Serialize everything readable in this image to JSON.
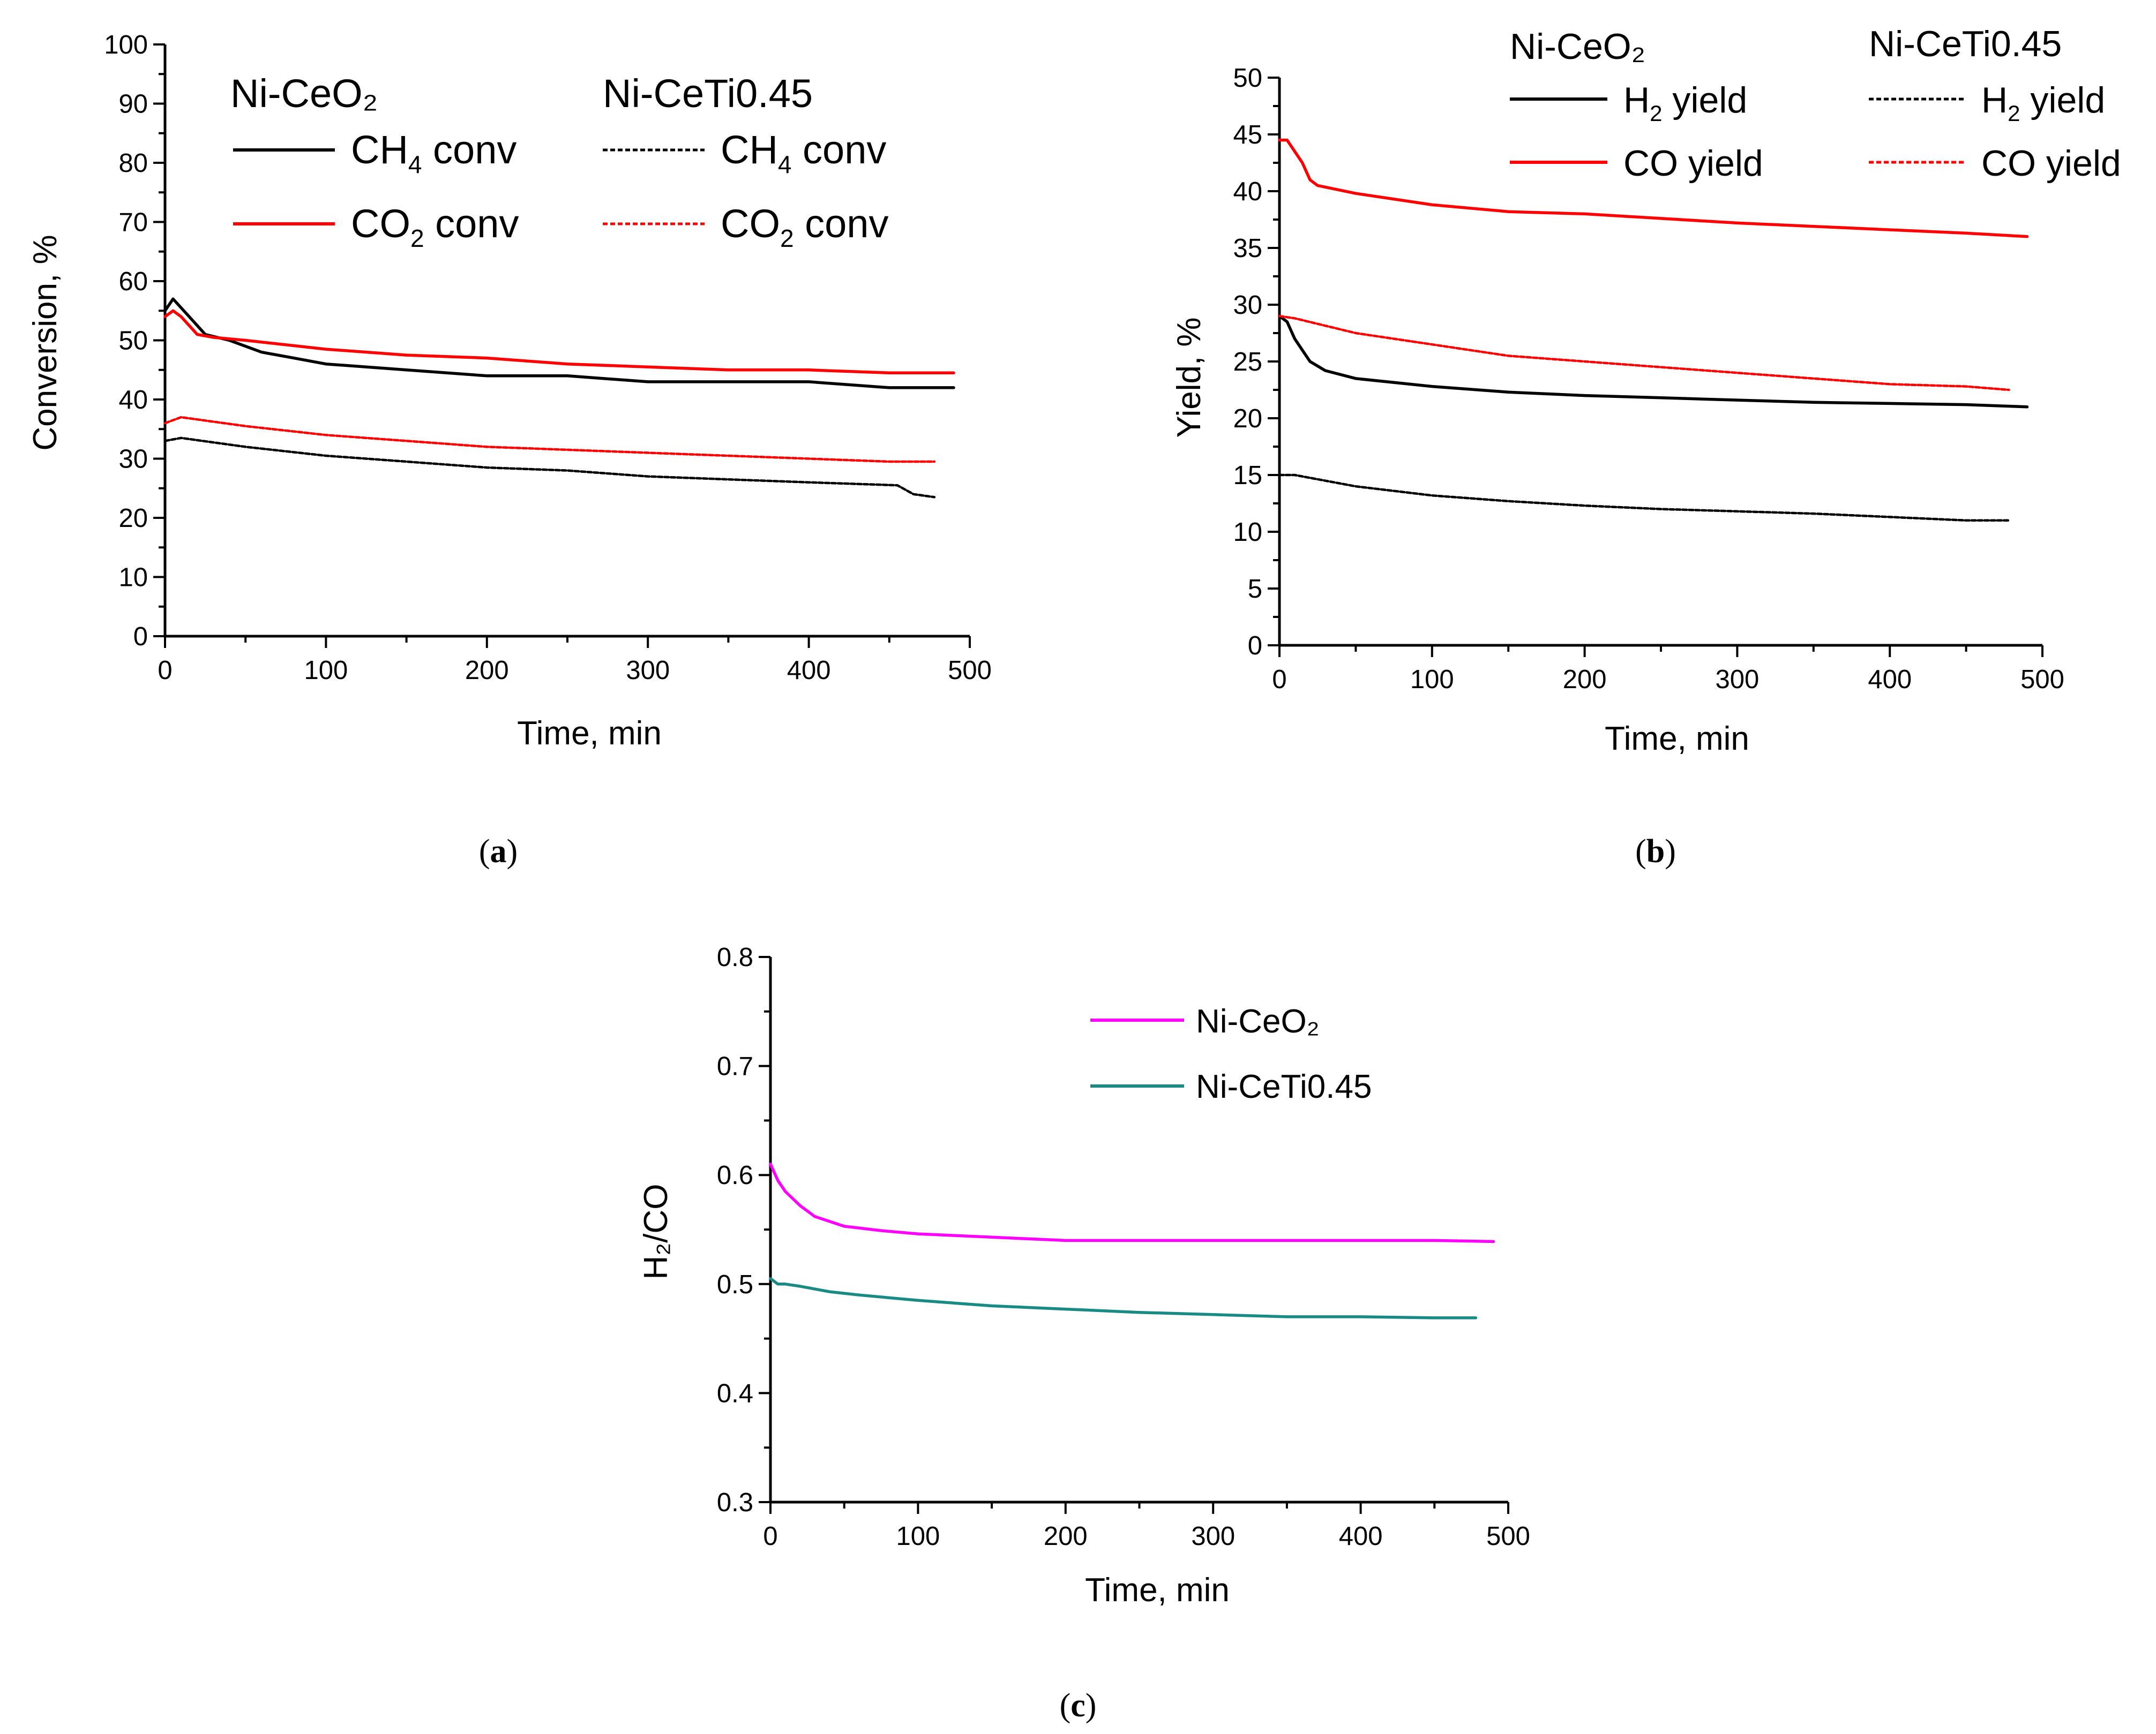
{
  "chart_data": [
    {
      "panel": "a",
      "type": "line",
      "caption": "a",
      "xlabel": "Time, min",
      "ylabel": "Conversion, %",
      "xlim": [
        0,
        500
      ],
      "ylim": [
        0,
        100
      ],
      "xticks": [
        0,
        100,
        200,
        300,
        400,
        500
      ],
      "yticks": [
        0,
        10,
        20,
        30,
        40,
        50,
        60,
        70,
        80,
        90,
        100
      ],
      "legend": {
        "groups": [
          "Ni-CeO₂",
          "Ni-CeTi0.45"
        ],
        "entries": [
          {
            "name": "CH",
            "sub": "4",
            "suffix": " conv"
          },
          {
            "name": "CO",
            "sub": "2",
            "suffix": " conv"
          }
        ],
        "placement": "top"
      },
      "series": [
        {
          "name": "Ni-CeO2 CH4 conv",
          "color": "#000000",
          "style": "solid",
          "x": [
            0,
            5,
            15,
            25,
            40,
            60,
            80,
            100,
            150,
            200,
            250,
            300,
            350,
            400,
            450,
            490
          ],
          "y": [
            55,
            57,
            54,
            51,
            50,
            48,
            47,
            46,
            45,
            44,
            44,
            43,
            43,
            43,
            42,
            42
          ]
        },
        {
          "name": "Ni-CeO2 CO2 conv",
          "color": "#ff0000",
          "style": "solid",
          "x": [
            0,
            5,
            10,
            20,
            30,
            50,
            100,
            150,
            200,
            250,
            300,
            350,
            400,
            450,
            490
          ],
          "y": [
            54,
            55,
            54,
            51,
            50.5,
            50,
            48.5,
            47.5,
            47,
            46,
            45.5,
            45,
            45,
            44.5,
            44.5
          ]
        },
        {
          "name": "Ni-CeTi0.45 CH4 conv",
          "color": "#000000",
          "style": "dashed",
          "x": [
            0,
            10,
            50,
            100,
            150,
            200,
            250,
            300,
            350,
            400,
            455,
            465,
            478
          ],
          "y": [
            33,
            33.5,
            32,
            30.5,
            29.5,
            28.5,
            28,
            27,
            26.5,
            26,
            25.5,
            24,
            23.5
          ]
        },
        {
          "name": "Ni-CeTi0.45 CO2 conv",
          "color": "#ff0000",
          "style": "dashed",
          "x": [
            0,
            10,
            50,
            100,
            150,
            200,
            250,
            300,
            350,
            400,
            450,
            478
          ],
          "y": [
            36,
            37,
            35.5,
            34,
            33,
            32,
            31.5,
            31,
            30.5,
            30,
            29.5,
            29.5
          ]
        }
      ]
    },
    {
      "panel": "b",
      "type": "line",
      "caption": "b",
      "xlabel": "Time, min",
      "ylabel": "Yield, %",
      "xlim": [
        0,
        500
      ],
      "ylim": [
        0,
        50
      ],
      "xticks": [
        0,
        100,
        200,
        300,
        400,
        500
      ],
      "yticks": [
        0,
        5,
        10,
        15,
        20,
        25,
        30,
        35,
        40,
        45,
        50
      ],
      "legend": {
        "groups": [
          "Ni-CeO₂",
          "Ni-CeTi0.45"
        ],
        "entries": [
          {
            "name": "H",
            "sub": "2",
            "suffix": " yield"
          },
          {
            "name": "CO yield",
            "sub": "",
            "suffix": ""
          }
        ],
        "placement": "top"
      },
      "series": [
        {
          "name": "Ni-CeO2 H2 yield",
          "color": "#000000",
          "style": "solid",
          "x": [
            0,
            5,
            10,
            15,
            20,
            30,
            50,
            100,
            150,
            200,
            250,
            300,
            350,
            400,
            450,
            490
          ],
          "y": [
            29,
            28.5,
            27,
            26,
            25,
            24.2,
            23.5,
            22.8,
            22.3,
            22,
            21.8,
            21.6,
            21.4,
            21.3,
            21.2,
            21
          ]
        },
        {
          "name": "Ni-CeO2 CO yield",
          "color": "#ff0000",
          "style": "solid",
          "x": [
            0,
            5,
            10,
            15,
            20,
            25,
            50,
            100,
            150,
            200,
            250,
            300,
            350,
            400,
            450,
            490
          ],
          "y": [
            44.5,
            44.5,
            43.5,
            42.5,
            41,
            40.5,
            39.8,
            38.8,
            38.2,
            38,
            37.6,
            37.2,
            36.9,
            36.6,
            36.3,
            36
          ]
        },
        {
          "name": "Ni-CeTi0.45 H2 yield",
          "color": "#000000",
          "style": "dashed",
          "x": [
            0,
            10,
            50,
            100,
            150,
            200,
            250,
            300,
            350,
            400,
            450,
            478
          ],
          "y": [
            15,
            15,
            14,
            13.2,
            12.7,
            12.3,
            12,
            11.8,
            11.6,
            11.3,
            11,
            11
          ]
        },
        {
          "name": "Ni-CeTi0.45 CO yield",
          "color": "#ff0000",
          "style": "dashed",
          "x": [
            0,
            10,
            50,
            100,
            150,
            200,
            250,
            300,
            350,
            400,
            450,
            478
          ],
          "y": [
            29,
            28.8,
            27.5,
            26.5,
            25.5,
            25,
            24.5,
            24,
            23.5,
            23,
            22.8,
            22.5
          ]
        }
      ]
    },
    {
      "panel": "c",
      "type": "line",
      "caption": "c",
      "xlabel": "Time, min",
      "ylabel": "H₂/CO",
      "xlim": [
        0,
        500
      ],
      "ylim": [
        0.3,
        0.8
      ],
      "xticks": [
        0,
        100,
        200,
        300,
        400,
        500
      ],
      "yticks": [
        0.3,
        0.4,
        0.5,
        0.6,
        0.7,
        0.8
      ],
      "legend": {
        "entries": [
          "Ni-CeO₂",
          "Ni-CeTi0.45"
        ],
        "placement": "top-right"
      },
      "series": [
        {
          "name": "Ni-CeO2",
          "color": "#ff00ff",
          "style": "solid",
          "x": [
            0,
            5,
            10,
            20,
            30,
            50,
            75,
            100,
            150,
            200,
            250,
            300,
            350,
            400,
            450,
            490
          ],
          "y": [
            0.61,
            0.595,
            0.585,
            0.572,
            0.562,
            0.553,
            0.549,
            0.546,
            0.543,
            0.54,
            0.54,
            0.54,
            0.54,
            0.54,
            0.54,
            0.539
          ]
        },
        {
          "name": "Ni-CeTi0.45",
          "color": "#1a8a84",
          "style": "solid",
          "x": [
            0,
            5,
            10,
            20,
            40,
            60,
            100,
            150,
            200,
            250,
            300,
            350,
            400,
            450,
            478
          ],
          "y": [
            0.505,
            0.5,
            0.5,
            0.498,
            0.493,
            0.49,
            0.485,
            0.48,
            0.477,
            0.474,
            0.472,
            0.47,
            0.47,
            0.469,
            0.469
          ]
        }
      ]
    }
  ]
}
